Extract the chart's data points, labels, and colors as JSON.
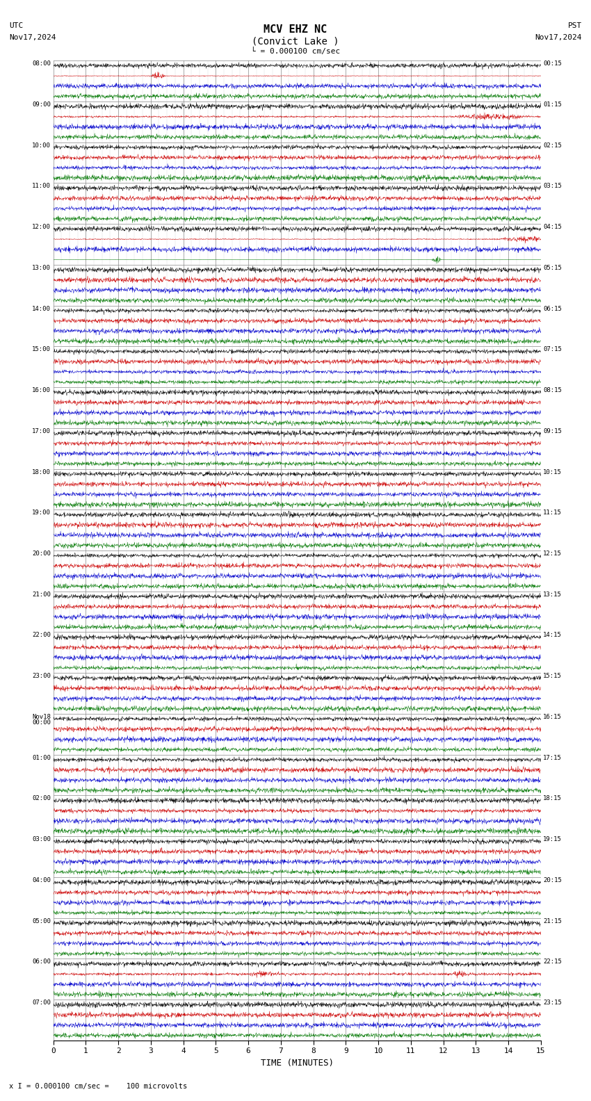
{
  "title_line1": "MCV EHZ NC",
  "title_line2": "(Convict Lake )",
  "scale_label": "= 0.000100 cm/sec",
  "left_label_top": "UTC",
  "left_label_date": "Nov17,2024",
  "right_label_top": "PST",
  "right_label_date": "Nov17,2024",
  "bottom_xlabel": "TIME (MINUTES)",
  "bottom_note": "= 0.000100 cm/sec =    100 microvolts",
  "xlim": [
    0,
    15
  ],
  "xticks": [
    0,
    1,
    2,
    3,
    4,
    5,
    6,
    7,
    8,
    9,
    10,
    11,
    12,
    13,
    14,
    15
  ],
  "bg_color": "#ffffff",
  "trace_colors": [
    "#000000",
    "#cc0000",
    "#0000cc",
    "#007700"
  ],
  "row_labels_left": [
    "08:00",
    "09:00",
    "10:00",
    "11:00",
    "12:00",
    "13:00",
    "14:00",
    "15:00",
    "16:00",
    "17:00",
    "18:00",
    "19:00",
    "20:00",
    "21:00",
    "22:00",
    "23:00",
    "Nov18\n00:00",
    "01:00",
    "02:00",
    "03:00",
    "04:00",
    "05:00",
    "06:00",
    "07:00"
  ],
  "row_labels_right": [
    "00:15",
    "01:15",
    "02:15",
    "03:15",
    "04:15",
    "05:15",
    "06:15",
    "07:15",
    "08:15",
    "09:15",
    "10:15",
    "11:15",
    "12:15",
    "13:15",
    "14:15",
    "15:15",
    "16:15",
    "17:15",
    "18:15",
    "19:15",
    "20:15",
    "21:15",
    "22:15",
    "23:15"
  ],
  "n_rows": 24,
  "traces_per_row": 4,
  "figsize": [
    8.5,
    15.84
  ],
  "dpi": 100
}
